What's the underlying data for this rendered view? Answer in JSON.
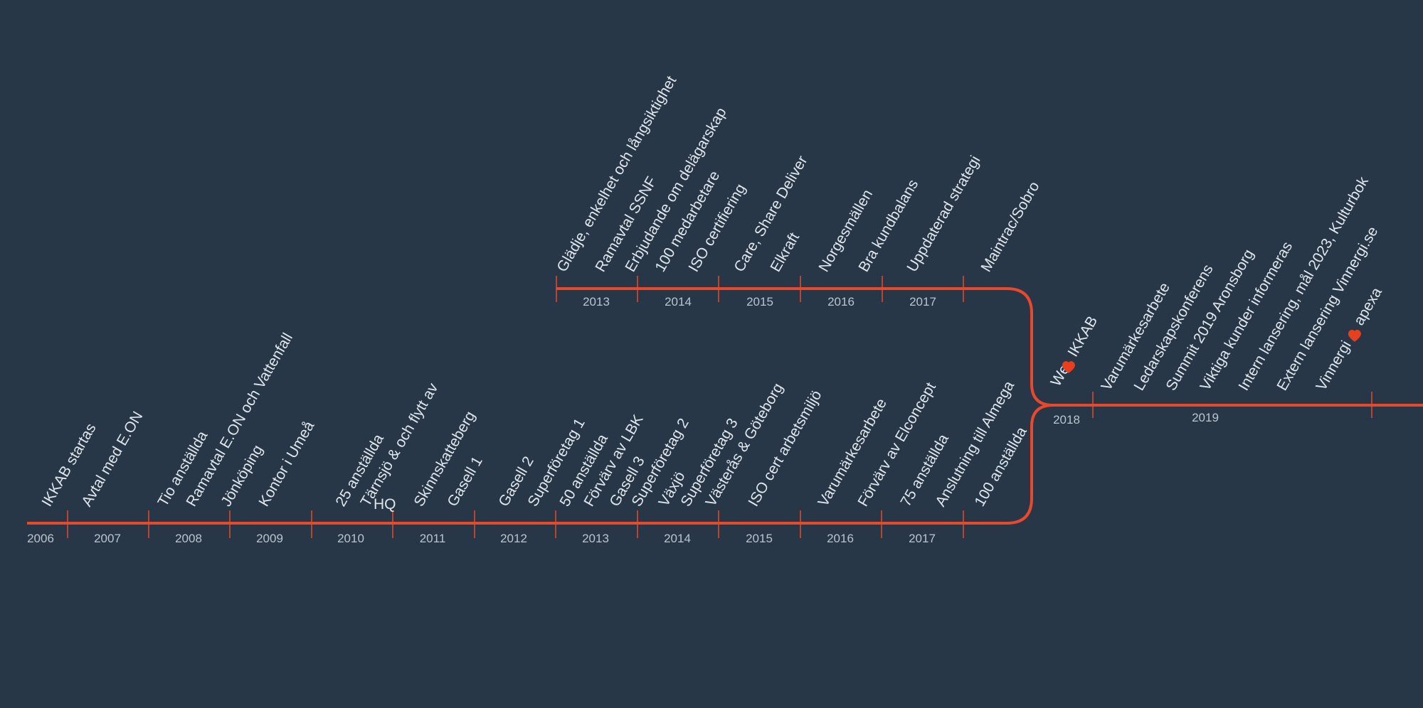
{
  "colors": {
    "background": "#283747",
    "line": "#e8492c",
    "text": "#dfe5ec",
    "year_text": "#b9c4cf",
    "heart": "#e8401f"
  },
  "upper_years": [
    "2013",
    "2014",
    "2015",
    "2016",
    "2017"
  ],
  "upper_events": [
    "Glädje, enkelhet och långsiktighet",
    "Ramavtal SSNF",
    "Erbjudande om delägarskap",
    "100 medarbetare",
    "ISO certifiering",
    "Care, Share Deliver",
    "Elkraft",
    "Norgesmällen",
    "Bra kundbalans",
    "Uppdaterad strategi",
    "Maintrac/Sobro"
  ],
  "lower_years": [
    "2006",
    "2007",
    "2008",
    "2009",
    "2010",
    "2011",
    "2012",
    "2013",
    "2014",
    "2015",
    "2016",
    "2017"
  ],
  "lower_events": [
    "IKKAB startas",
    "Avtal med E.ON",
    "Tio anställda",
    "Ramavtal E.ON och Vattenfall",
    "Jönköping",
    "Kontor i Umeå",
    "25 anställda",
    "Tärnsjö & och flytt av",
    "HQ",
    "Skinnskatteberg",
    "Gasell 1",
    "Gasell 2",
    "Superföretag 1",
    "50 anställda",
    "Förvärv av LBK",
    "Gasell 3",
    "Superföretag 2",
    "Växjö",
    "Superföretag 3",
    "Västerås & Göteborg",
    "ISO cert arbetsmiljö",
    "Varumärkesarbete",
    "Förvärv av Elconcept",
    "75 anställda",
    "Anslutning till Almega",
    "100 anställda"
  ],
  "right_years": [
    "2018",
    "2019"
  ],
  "right_events": {
    "we_prefix": "We",
    "we_suffix": "IKKAB",
    "items": [
      "Varumärkesarbete",
      "Ledarskapskonferens",
      "Summit 2019 Aronsborg",
      "Viktiga kunder informeras",
      "Intern lansering, mål 2023, Kulturbok",
      "Extern lansering  Vinnergi.se"
    ],
    "vinnergi_prefix": "Vinnergi",
    "vinnergi_suffix": "apexa"
  }
}
